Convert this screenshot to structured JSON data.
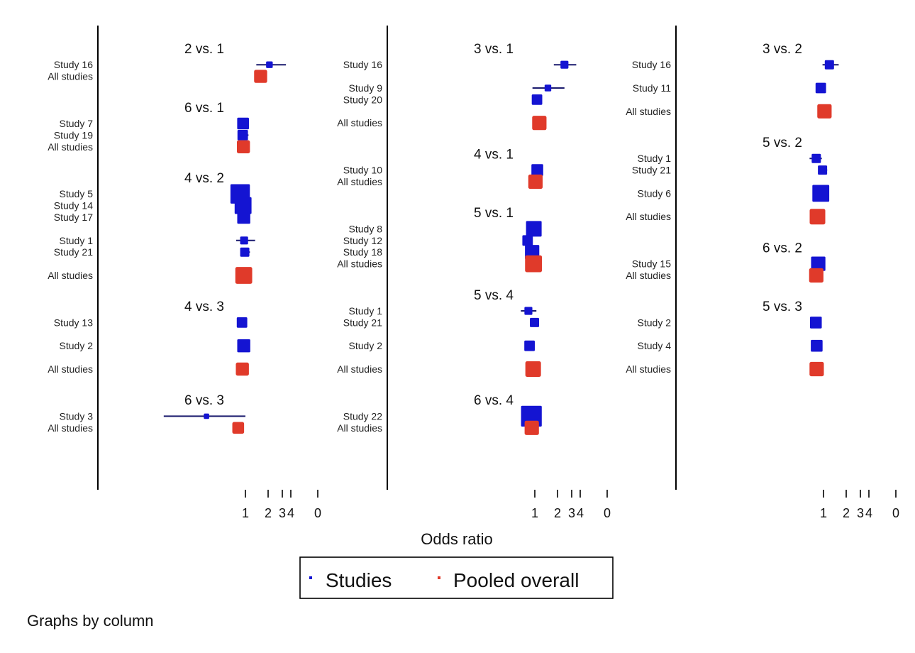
{
  "chart_data": {
    "type": "forest",
    "xlabel": "Odds ratio",
    "xscale": "log",
    "x_tick_labels": [
      "1",
      "2",
      "3",
      "4",
      "0"
    ],
    "legend": [
      {
        "label": "Studies",
        "color": "#1414d2"
      },
      {
        "label": "Pooled overall",
        "color": "#e03a2a"
      }
    ],
    "footnote": "Graphs by column",
    "colors": {
      "study": "#1414d2",
      "pooled": "#e03a2a",
      "ci": "#1a1a6e",
      "axis": "#000000"
    },
    "panels": [
      {
        "groups": [
          {
            "title": "2 vs. 1",
            "rows": [
              {
                "label": "Study 16",
                "kind": "study",
                "or": 2.1,
                "lo": 1.4,
                "hi": 3.5,
                "weight": 3
              },
              {
                "label": "All studies",
                "kind": "pooled",
                "or": 1.6,
                "weight": 8
              }
            ]
          },
          {
            "title": "6 vs. 1",
            "rows": [
              {
                "label": "Study 7",
                "kind": "study",
                "or": 0.93,
                "lo": 0.85,
                "hi": 1.0,
                "weight": 7
              },
              {
                "label": "Study 19",
                "kind": "study",
                "or": 0.92,
                "lo": 0.8,
                "hi": 1.1,
                "weight": 6
              },
              {
                "label": "All studies",
                "kind": "pooled",
                "or": 0.94,
                "weight": 8
              }
            ]
          },
          {
            "title": "4 vs. 2",
            "rows": [
              {
                "label": "Study 5",
                "kind": "study",
                "or": 0.85,
                "weight": 13
              },
              {
                "label": "Study 14",
                "kind": "study",
                "or": 0.93,
                "weight": 11
              },
              {
                "label": "Study 17",
                "kind": "study",
                "or": 0.95,
                "weight": 8
              },
              {
                "gap": true
              },
              {
                "label": "Study 1",
                "kind": "study",
                "or": 0.96,
                "lo": 0.75,
                "hi": 1.35,
                "weight": 4
              },
              {
                "label": "Study 21",
                "kind": "study",
                "or": 0.98,
                "lo": 0.88,
                "hi": 1.15,
                "weight": 5
              },
              {
                "gap": true
              },
              {
                "label": "All studies",
                "kind": "pooled",
                "or": 0.95,
                "weight": 11
              }
            ]
          },
          {
            "title": "4 vs. 3",
            "rows": [
              {
                "label": "Study 13",
                "kind": "study",
                "or": 0.9,
                "lo": 0.83,
                "hi": 0.98,
                "weight": 6
              },
              {
                "gap": true
              },
              {
                "label": "Study 2",
                "kind": "study",
                "or": 0.95,
                "lo": 0.88,
                "hi": 1.03,
                "weight": 8
              },
              {
                "gap": true
              },
              {
                "label": "All studies",
                "kind": "pooled",
                "or": 0.91,
                "weight": 8
              }
            ]
          },
          {
            "title": "6 vs. 3",
            "rows": [
              {
                "label": "Study 3",
                "kind": "study",
                "or": 0.3,
                "lo": 0.08,
                "hi": 1.0,
                "weight": 2
              },
              {
                "label": "All studies",
                "kind": "pooled",
                "or": 0.8,
                "weight": 7
              }
            ]
          }
        ]
      },
      {
        "groups": [
          {
            "title": "3 vs. 1",
            "rows": [
              {
                "label": "Study 16",
                "kind": "study",
                "or": 2.5,
                "lo": 1.8,
                "hi": 3.6,
                "weight": 4
              },
              {
                "gap": true
              },
              {
                "label": "Study 9",
                "kind": "study",
                "or": 1.5,
                "lo": 0.93,
                "hi": 2.5,
                "weight": 3
              },
              {
                "label": "Study 20",
                "kind": "study",
                "or": 1.07,
                "lo": 0.97,
                "hi": 1.2,
                "weight": 6
              },
              {
                "gap": true
              },
              {
                "label": "All studies",
                "kind": "pooled",
                "or": 1.15,
                "weight": 9
              }
            ]
          },
          {
            "title": "4 vs. 1",
            "rows": [
              {
                "label": "Study 10",
                "kind": "study",
                "or": 1.08,
                "lo": 0.99,
                "hi": 1.2,
                "weight": 7
              },
              {
                "label": "All studies",
                "kind": "pooled",
                "or": 1.02,
                "weight": 9
              }
            ]
          },
          {
            "title": "5 vs. 1",
            "rows": [
              {
                "label": "Study 8",
                "kind": "study",
                "or": 0.97,
                "weight": 10
              },
              {
                "label": "Study 12",
                "kind": "study",
                "or": 0.8,
                "lo": 0.72,
                "hi": 0.9,
                "weight": 6
              },
              {
                "label": "Study 18",
                "kind": "study",
                "or": 0.92,
                "weight": 9
              },
              {
                "label": "All studies",
                "kind": "pooled",
                "or": 0.96,
                "weight": 11
              }
            ]
          },
          {
            "title": "5 vs. 4",
            "rows": [
              {
                "label": "Study 1",
                "kind": "study",
                "or": 0.82,
                "lo": 0.65,
                "hi": 1.05,
                "weight": 4
              },
              {
                "label": "Study 21",
                "kind": "study",
                "or": 0.99,
                "lo": 0.9,
                "hi": 1.12,
                "weight": 5
              },
              {
                "gap": true
              },
              {
                "label": "Study 2",
                "kind": "study",
                "or": 0.85,
                "lo": 0.78,
                "hi": 0.93,
                "weight": 6
              },
              {
                "gap": true
              },
              {
                "label": "All studies",
                "kind": "pooled",
                "or": 0.95,
                "weight": 10
              }
            ]
          },
          {
            "title": "6 vs. 4",
            "rows": [
              {
                "label": "Study 22",
                "kind": "study",
                "or": 0.9,
                "weight": 14
              },
              {
                "label": "All studies",
                "kind": "pooled",
                "or": 0.91,
                "weight": 9
              }
            ]
          }
        ]
      },
      {
        "groups": [
          {
            "title": "3 vs. 2",
            "rows": [
              {
                "label": "Study 16",
                "kind": "study",
                "or": 1.2,
                "lo": 0.97,
                "hi": 1.6,
                "weight": 5
              },
              {
                "gap": true
              },
              {
                "label": "Study 11",
                "kind": "study",
                "or": 0.92,
                "lo": 0.83,
                "hi": 1.05,
                "weight": 6
              },
              {
                "gap": true
              },
              {
                "label": "All studies",
                "kind": "pooled",
                "or": 1.03,
                "weight": 9
              }
            ]
          },
          {
            "title": "5 vs. 2",
            "rows": [
              {
                "label": "Study 1",
                "kind": "study",
                "or": 0.8,
                "lo": 0.65,
                "hi": 0.95,
                "weight": 5
              },
              {
                "label": "Study 21",
                "kind": "study",
                "or": 0.97,
                "lo": 0.88,
                "hi": 1.12,
                "weight": 5
              },
              {
                "gap": true
              },
              {
                "label": "Study 6",
                "kind": "study",
                "or": 0.92,
                "weight": 11
              },
              {
                "gap": true
              },
              {
                "label": "All studies",
                "kind": "pooled",
                "or": 0.83,
                "weight": 10
              }
            ]
          },
          {
            "title": "6 vs. 2",
            "rows": [
              {
                "label": "Study 15",
                "kind": "study",
                "or": 0.85,
                "weight": 9
              },
              {
                "label": "All studies",
                "kind": "pooled",
                "or": 0.8,
                "weight": 9
              }
            ]
          },
          {
            "title": "5 vs. 3",
            "rows": [
              {
                "label": "Study 2",
                "kind": "study",
                "or": 0.79,
                "lo": 0.73,
                "hi": 0.87,
                "weight": 7
              },
              {
                "gap": true
              },
              {
                "label": "Study 4",
                "kind": "study",
                "or": 0.81,
                "lo": 0.74,
                "hi": 0.9,
                "weight": 7
              },
              {
                "gap": true
              },
              {
                "label": "All studies",
                "kind": "pooled",
                "or": 0.81,
                "weight": 9
              }
            ]
          }
        ]
      }
    ]
  }
}
